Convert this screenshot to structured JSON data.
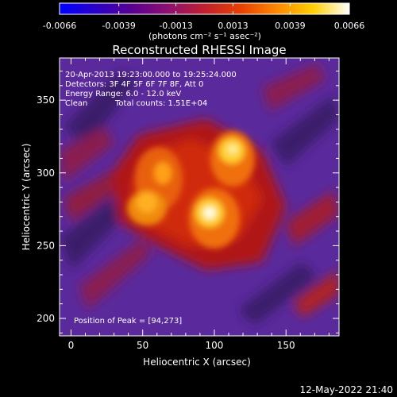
{
  "colorbar": {
    "stops": [
      "#0000ff",
      "#2a00c8",
      "#5a0090",
      "#8e1070",
      "#c02030",
      "#e84000",
      "#ff8800",
      "#ffd000",
      "#ffffff"
    ],
    "ticks": [
      -0.0066,
      -0.0039,
      -0.0013,
      0.0013,
      0.0039,
      0.0066
    ],
    "tick_labels": [
      "-0.0066",
      "-0.0039",
      "-0.0013",
      "0.0013",
      "0.0039",
      "0.0066"
    ],
    "unit_label": "(photons cm⁻² s⁻¹ asec⁻²)"
  },
  "chart_data": {
    "type": "heatmap",
    "title": "Reconstructed RHESSI Image",
    "xlabel": "Heliocentric X (arcsec)",
    "ylabel": "Heliocentric Y (arcsec)",
    "xlim": [
      -8,
      187
    ],
    "ylim": [
      188,
      379
    ],
    "xticks": [
      0,
      50,
      100,
      150
    ],
    "yticks": [
      200,
      250,
      300,
      350
    ],
    "value_range": [
      -0.0066,
      0.0066
    ],
    "annotations": [
      "20-Apr-2013 19:23:00.000 to 19:25:24.000",
      "Detectors: 3F 4F 5F 6F 7F 8F, Att 0",
      "Energy Range: 6.0 - 12.0 keV",
      "Clean",
      "Total counts: 1.51E+04"
    ],
    "peak_label": "Position of Peak = [94,273]",
    "peaks": [
      {
        "x": 94,
        "y": 273,
        "value": 0.0066
      },
      {
        "x": 112,
        "y": 316,
        "value": 0.0058
      },
      {
        "x": 58,
        "y": 285,
        "value": 0.0042
      },
      {
        "x": 65,
        "y": 305,
        "value": 0.0034
      }
    ]
  },
  "footer": {
    "timestamp": "12-May-2022 21:40"
  }
}
